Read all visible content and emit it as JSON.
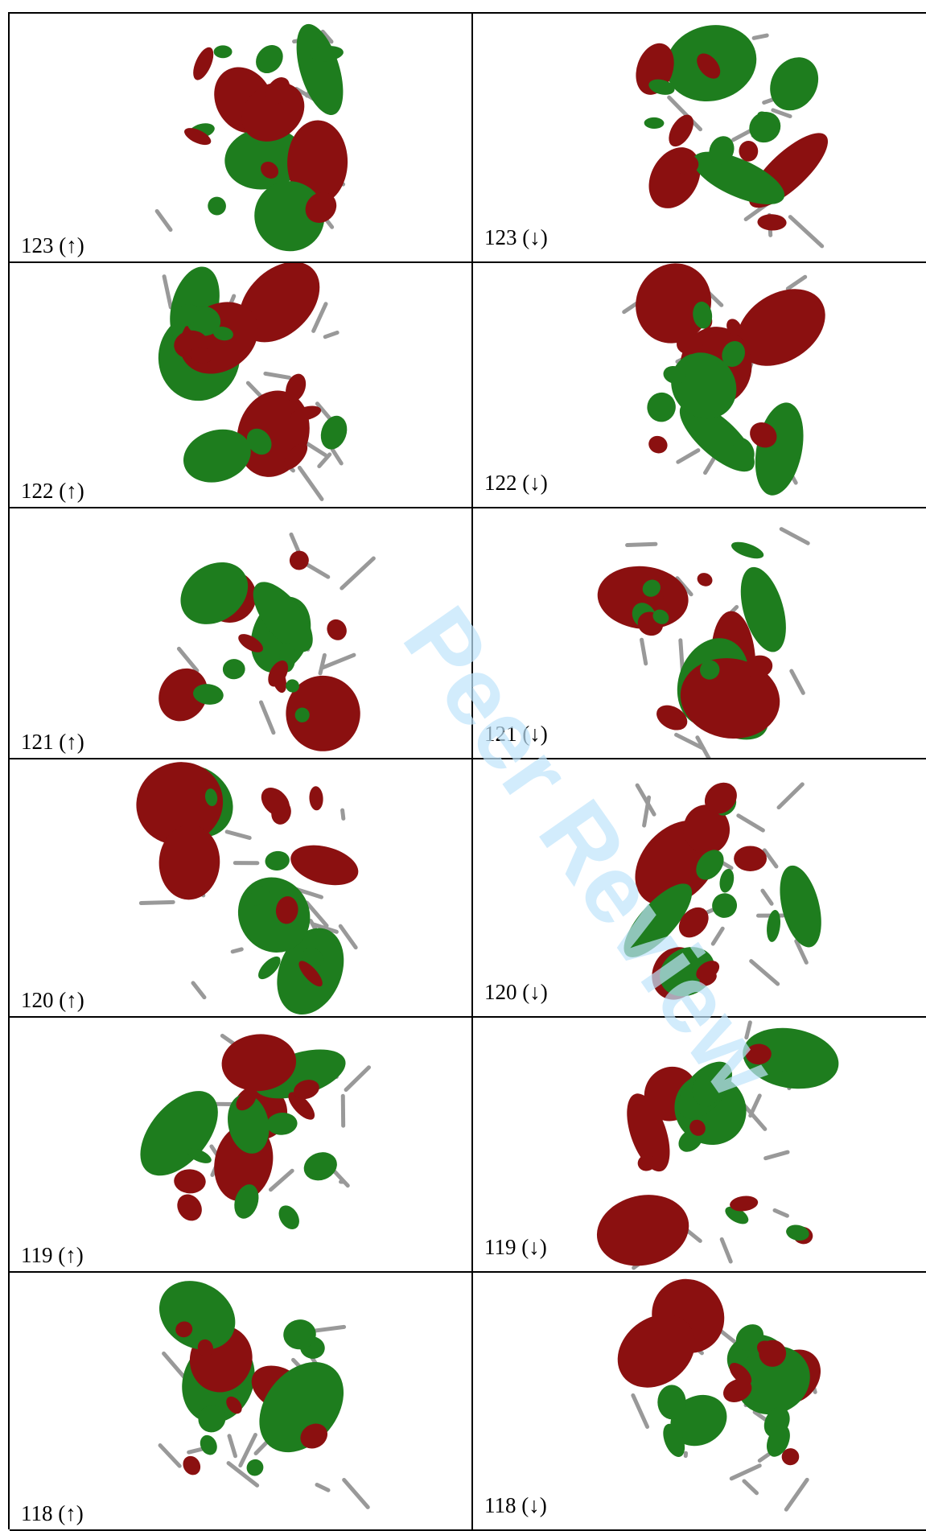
{
  "rows": [
    [
      "123 (↑)",
      "123 (↓)"
    ],
    [
      "122 (↑)",
      "122 (↓)"
    ],
    [
      "121 (↑)",
      "121 (↓)"
    ],
    [
      "120 (↑)",
      "120 (↓)"
    ],
    [
      "119 (↑)",
      "119 (↓)"
    ],
    [
      "118 (↑)",
      "118 (↓)"
    ]
  ],
  "watermark": "Peer Review"
}
